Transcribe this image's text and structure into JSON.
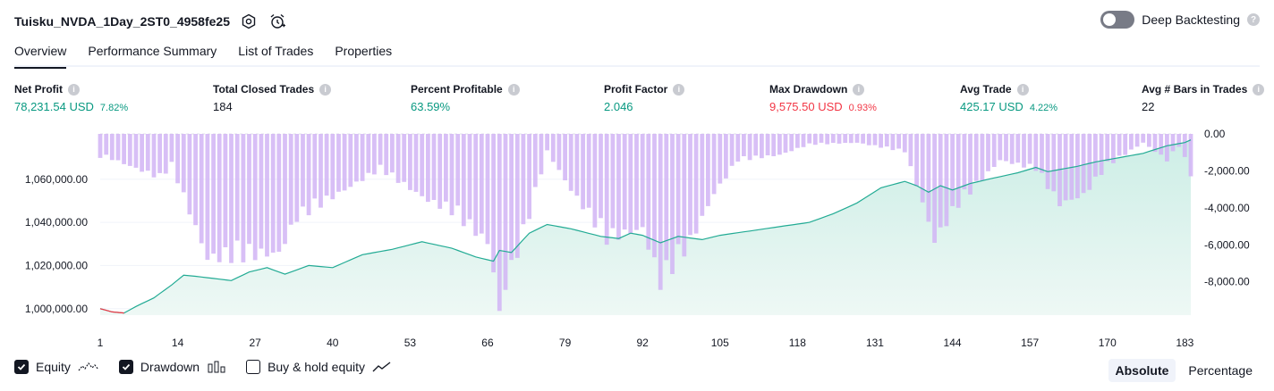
{
  "header": {
    "title": "Tuisku_NVDA_1Day_2ST0_4958fe25",
    "deep_backtesting_label": "Deep Backtesting"
  },
  "tabs": [
    {
      "label": "Overview",
      "active": true
    },
    {
      "label": "Performance Summary",
      "active": false
    },
    {
      "label": "List of Trades",
      "active": false
    },
    {
      "label": "Properties",
      "active": false
    }
  ],
  "metrics": {
    "net_profit": {
      "label": "Net Profit",
      "value": "78,231.54 USD",
      "pct": "7.82%"
    },
    "total_closed_trades": {
      "label": "Total Closed Trades",
      "value": "184"
    },
    "percent_profitable": {
      "label": "Percent Profitable",
      "value": "63.59%"
    },
    "profit_factor": {
      "label": "Profit Factor",
      "value": "2.046"
    },
    "max_drawdown": {
      "label": "Max Drawdown",
      "value": "9,575.50 USD",
      "pct": "0.93%"
    },
    "avg_trade": {
      "label": "Avg Trade",
      "value": "425.17 USD",
      "pct": "4.22%"
    },
    "avg_bars": {
      "label": "Avg # Bars in Trades",
      "value": "22"
    }
  },
  "colors": {
    "positive": "#089981",
    "negative": "#f23645",
    "equity_line": "#22ab94",
    "equity_fill": "#cdeee6",
    "drawdown_bar": "#d1b4f5"
  },
  "legend": {
    "equity": {
      "label": "Equity",
      "checked": true,
      "icon": "equity-wave-icon"
    },
    "drawdown": {
      "label": "Drawdown",
      "checked": true,
      "icon": "bars-icon"
    },
    "buy_hold": {
      "label": "Buy & hold equity",
      "checked": false,
      "icon": "trend-line-icon"
    }
  },
  "modes": {
    "absolute": "Absolute",
    "percentage": "Percentage",
    "selected": "Absolute"
  },
  "chart_data": {
    "type": "area",
    "x_ticks": [
      1,
      14,
      27,
      40,
      53,
      66,
      79,
      92,
      105,
      118,
      131,
      144,
      157,
      170,
      183
    ],
    "equity_axis": {
      "ticks": [
        "1,000,000.00",
        "1,020,000.00",
        "1,040,000.00",
        "1,060,000.00"
      ],
      "tick_values": [
        1000000,
        1020000,
        1040000,
        1060000
      ],
      "range": [
        997000,
        1081000
      ]
    },
    "drawdown_axis": {
      "ticks": [
        "0.00",
        "-2,000.00",
        "-4,000.00",
        "-6,000.00",
        "-8,000.00"
      ],
      "tick_values": [
        0,
        -2000,
        -4000,
        -6000,
        -8000
      ],
      "range": [
        -9800,
        0
      ]
    },
    "equity_series": {
      "trades": [
        1,
        3,
        5,
        7,
        10,
        13,
        15,
        17,
        20,
        23,
        26,
        29,
        32,
        36,
        40,
        45,
        50,
        55,
        60,
        64,
        67,
        68,
        70,
        73,
        76,
        80,
        85,
        88,
        90,
        92,
        95,
        98,
        102,
        105,
        110,
        115,
        120,
        124,
        128,
        132,
        136,
        138,
        140,
        142,
        144,
        147,
        150,
        155,
        158,
        160,
        165,
        168,
        172,
        176,
        180,
        183,
        184
      ],
      "values": [
        1000000,
        998500,
        998000,
        1001000,
        1005000,
        1011000,
        1015500,
        1015000,
        1014000,
        1013000,
        1017000,
        1019000,
        1016000,
        1020000,
        1019000,
        1025000,
        1027500,
        1031000,
        1028000,
        1024000,
        1022000,
        1027000,
        1026000,
        1035000,
        1039000,
        1037000,
        1033500,
        1032500,
        1035000,
        1034000,
        1030500,
        1033500,
        1032000,
        1034000,
        1036000,
        1038000,
        1040000,
        1044000,
        1049000,
        1056000,
        1059000,
        1057000,
        1054000,
        1057000,
        1055000,
        1058000,
        1060000,
        1063000,
        1065500,
        1063500,
        1066000,
        1068000,
        1070000,
        1072000,
        1075500,
        1077000,
        1078231.54
      ]
    },
    "drawdown_series": {
      "trades": [
        2,
        11,
        13,
        19,
        31,
        34,
        48,
        56,
        60,
        66,
        68,
        72,
        76,
        80,
        86,
        92,
        95,
        100,
        104,
        108,
        115,
        120,
        128,
        136,
        138,
        141,
        145,
        152,
        158,
        162,
        166,
        170,
        176,
        178,
        180,
        182,
        184
      ],
      "values": [
        -1300,
        -2500,
        -1800,
        -7100,
        -6800,
        -4800,
        -2000,
        -3800,
        -4400,
        -6200,
        -9575.5,
        -5800,
        -1000,
        -3200,
        -6000,
        -5400,
        -8500,
        -6200,
        -3400,
        -1500,
        -1200,
        -600,
        -500,
        -1000,
        -2900,
        -6100,
        -4000,
        -1500,
        -2000,
        -4000,
        -3500,
        -1800,
        -500,
        -1000,
        -1500,
        -700,
        -2300
      ]
    }
  }
}
